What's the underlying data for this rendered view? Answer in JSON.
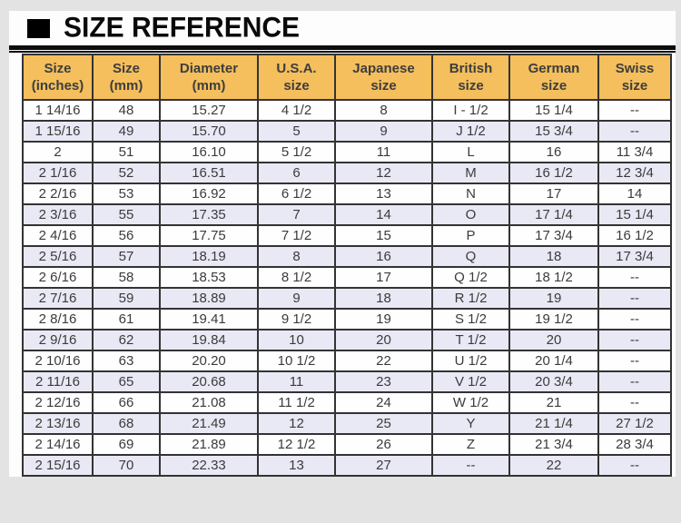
{
  "title": {
    "text": "SIZE REFERENCE",
    "icon": "black-square-bullet"
  },
  "colors": {
    "page_bg": "#E3E3E3",
    "panel_bg": "#FDFDFD",
    "header_bg": "#F4BF5C",
    "row_bg": "#FEFEFE",
    "row_alt_bg": "#E9E9F5",
    "border": "#333333",
    "cell_text": "#3B3B3B",
    "title_rule": "#0D0D0D"
  },
  "chart_data": {
    "type": "table",
    "title": "SIZE REFERENCE",
    "columns": [
      "Size\n(inches)",
      "Size\n(mm)",
      "Diameter\n(mm)",
      "U.S.A.\nsize",
      "Japanese\nsize",
      "British\nsize",
      "German\nsize",
      "Swiss\nsize"
    ],
    "rows": [
      [
        "1 14/16",
        "48",
        "15.27",
        "4 1/2",
        "8",
        "I - 1/2",
        "15 1/4",
        "--"
      ],
      [
        "1 15/16",
        "49",
        "15.70",
        "5",
        "9",
        "J 1/2",
        "15 3/4",
        "--"
      ],
      [
        "2",
        "51",
        "16.10",
        "5 1/2",
        "11",
        "L",
        "16",
        "11 3/4"
      ],
      [
        "2 1/16",
        "52",
        "16.51",
        "6",
        "12",
        "M",
        "16 1/2",
        "12 3/4"
      ],
      [
        "2 2/16",
        "53",
        "16.92",
        "6 1/2",
        "13",
        "N",
        "17",
        "14"
      ],
      [
        "2 3/16",
        "55",
        "17.35",
        "7",
        "14",
        "O",
        "17 1/4",
        "15 1/4"
      ],
      [
        "2 4/16",
        "56",
        "17.75",
        "7 1/2",
        "15",
        "P",
        "17 3/4",
        "16 1/2"
      ],
      [
        "2 5/16",
        "57",
        "18.19",
        "8",
        "16",
        "Q",
        "18",
        "17 3/4"
      ],
      [
        "2 6/16",
        "58",
        "18.53",
        "8 1/2",
        "17",
        "Q 1/2",
        "18 1/2",
        "--"
      ],
      [
        "2 7/16",
        "59",
        "18.89",
        "9",
        "18",
        "R 1/2",
        "19",
        "--"
      ],
      [
        "2 8/16",
        "61",
        "19.41",
        "9 1/2",
        "19",
        "S 1/2",
        "19 1/2",
        "--"
      ],
      [
        "2 9/16",
        "62",
        "19.84",
        "10",
        "20",
        "T 1/2",
        "20",
        "--"
      ],
      [
        "2 10/16",
        "63",
        "20.20",
        "10 1/2",
        "22",
        "U 1/2",
        "20 1/4",
        "--"
      ],
      [
        "2 11/16",
        "65",
        "20.68",
        "11",
        "23",
        "V 1/2",
        "20 3/4",
        "--"
      ],
      [
        "2 12/16",
        "66",
        "21.08",
        "11 1/2",
        "24",
        "W 1/2",
        "21",
        "--"
      ],
      [
        "2 13/16",
        "68",
        "21.49",
        "12",
        "25",
        "Y",
        "21 1/4",
        "27 1/2"
      ],
      [
        "2 14/16",
        "69",
        "21.89",
        "12 1/2",
        "26",
        "Z",
        "21 3/4",
        "28 3/4"
      ],
      [
        "2 15/16",
        "70",
        "22.33",
        "13",
        "27",
        "--",
        "22",
        "--"
      ]
    ]
  }
}
